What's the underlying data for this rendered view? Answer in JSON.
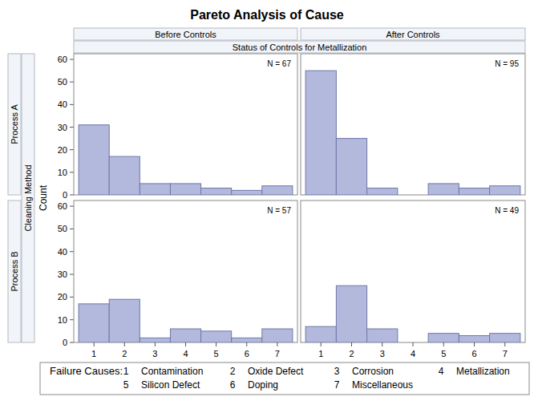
{
  "chart_data": {
    "type": "bar",
    "title": "Pareto Analysis of Cause",
    "column_header": "Status of Controls for Metallization",
    "columns": [
      "Before Controls",
      "After Controls"
    ],
    "row_header": "Cleaning Method",
    "rows": [
      "Process A",
      "Process B"
    ],
    "ylabel": "Count",
    "categories": [
      "1",
      "2",
      "3",
      "4",
      "5",
      "6",
      "7"
    ],
    "ylim": [
      0,
      62.5
    ],
    "yticks": [
      0,
      10,
      20,
      30,
      40,
      50,
      60
    ],
    "color": "#b3b9dd",
    "panels": [
      [
        {
          "n_label": "N = 67",
          "values": [
            31,
            17,
            5,
            5,
            3,
            2,
            4
          ]
        },
        {
          "n_label": "N = 95",
          "values": [
            55,
            25,
            3,
            0,
            5,
            3,
            4
          ]
        }
      ],
      [
        {
          "n_label": "N = 57",
          "values": [
            17,
            19,
            2,
            6,
            5,
            2,
            6
          ]
        },
        {
          "n_label": "N = 49",
          "values": [
            7,
            25,
            6,
            0,
            4,
            3,
            4
          ]
        }
      ]
    ],
    "cause_title": "Failure Causes:",
    "causes": [
      {
        "key": "1",
        "label": "Contamination"
      },
      {
        "key": "2",
        "label": "Oxide Defect"
      },
      {
        "key": "3",
        "label": "Corrosion"
      },
      {
        "key": "4",
        "label": "Metallization"
      },
      {
        "key": "5",
        "label": "Silicon Defect"
      },
      {
        "key": "6",
        "label": "Doping"
      },
      {
        "key": "7",
        "label": "Miscellaneous"
      }
    ]
  }
}
